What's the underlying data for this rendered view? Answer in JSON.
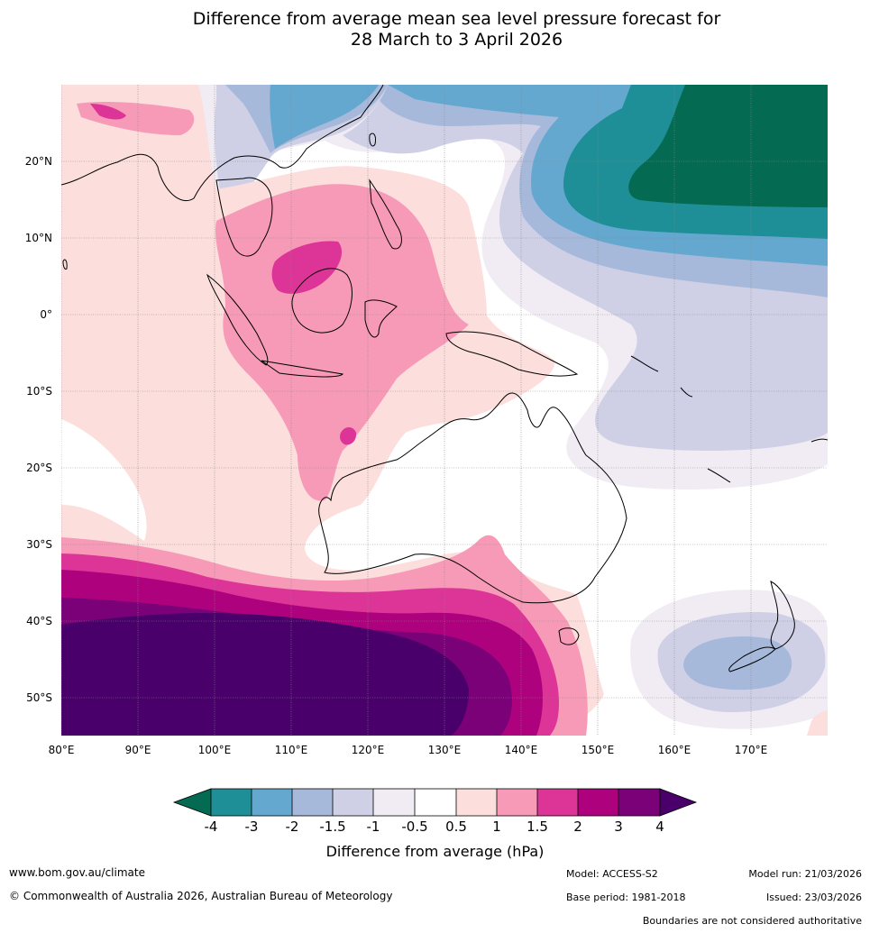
{
  "title": {
    "line1": "Difference from average mean sea level pressure forecast for",
    "line2": "28 March to 3 April 2026"
  },
  "map": {
    "lon_labels": [
      "80°E",
      "90°E",
      "100°E",
      "110°E",
      "120°E",
      "130°E",
      "140°E",
      "150°E",
      "160°E",
      "170°E"
    ],
    "lat_labels": [
      "20°N",
      "10°N",
      "0°",
      "10°S",
      "20°S",
      "30°S",
      "40°S",
      "50°S"
    ]
  },
  "colorbar": {
    "label": "Difference from average (hPa)",
    "ticks": [
      "-4",
      "-3",
      "-2",
      "-1.5",
      "-1",
      "-0.5",
      "0.5",
      "1",
      "1.5",
      "2",
      "3",
      "4"
    ],
    "colors": {
      "lt_m4": "#046a52",
      "m4_m3": "#1e8f97",
      "m3_m2": "#64a8d0",
      "m2_m15": "#a6b9da",
      "m15_m1": "#cfd0e6",
      "m1_m05": "#f1ecf4",
      "neutral": "#ffffff",
      "p05_p1": "#fcdedd",
      "p1_p15": "#f79ab8",
      "p15_p2": "#dd3497",
      "p2_p3": "#ae017e",
      "p3_p4": "#7a0177",
      "gt_p4": "#49006a"
    }
  },
  "footer": {
    "url": "www.bom.gov.au/climate",
    "copyright": "© Commonwealth of Australia 2026, Australian Bureau of Meteorology",
    "model": "Model: ACCESS-S2",
    "base_period": "Base period: 1981-2018",
    "model_run": "Model run: 21/03/2026",
    "issued": "Issued: 23/03/2026",
    "disclaimer": "Boundaries are not considered authoritative"
  }
}
